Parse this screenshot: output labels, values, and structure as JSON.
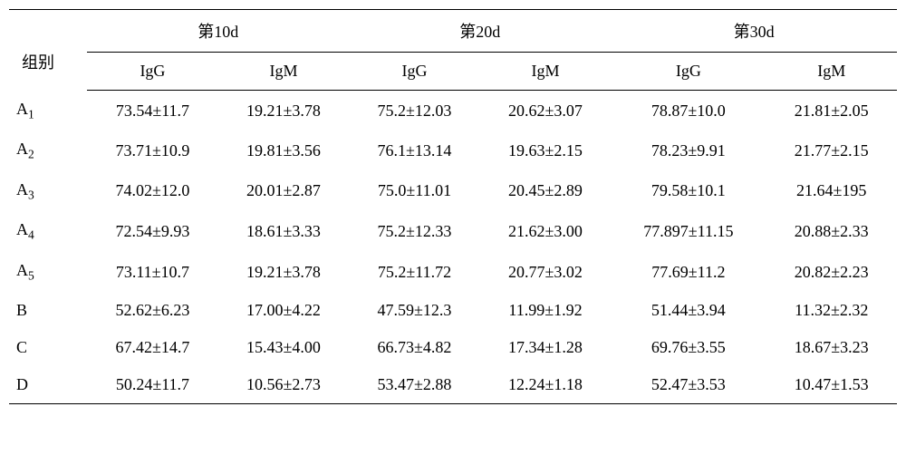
{
  "table": {
    "row_label_header": "组别",
    "period_groups": [
      "第10d",
      "第20d",
      "第30d"
    ],
    "sub_headers": [
      "IgG",
      "IgM"
    ],
    "rows": [
      {
        "label_html": "A<sub>1</sub>",
        "cells": [
          "73.54±11.7",
          "19.21±3.78",
          "75.2±12.03",
          "20.62±3.07",
          "78.87±10.0",
          "21.81±2.05"
        ]
      },
      {
        "label_html": "A<sub>2</sub>",
        "cells": [
          "73.71±10.9",
          "19.81±3.56",
          "76.1±13.14",
          "19.63±2.15",
          "78.23±9.91",
          "21.77±2.15"
        ]
      },
      {
        "label_html": "A<sub>3</sub>",
        "cells": [
          "74.02±12.0",
          "20.01±2.87",
          "75.0±11.01",
          "20.45±2.89",
          "79.58±10.1",
          "21.64±195"
        ]
      },
      {
        "label_html": "A<sub>4</sub>",
        "cells": [
          "72.54±9.93",
          "18.61±3.33",
          "75.2±12.33",
          "21.62±3.00",
          "77.897±11.15",
          "20.88±2.33"
        ]
      },
      {
        "label_html": "A<sub>5</sub>",
        "cells": [
          "73.11±10.7",
          "19.21±3.78",
          "75.2±11.72",
          "20.77±3.02",
          "77.69±11.2",
          "20.82±2.23"
        ]
      },
      {
        "label_html": "B",
        "cells": [
          "52.62±6.23",
          "17.00±4.22",
          "47.59±12.3",
          "11.99±1.92",
          "51.44±3.94",
          "11.32±2.32"
        ]
      },
      {
        "label_html": "C",
        "cells": [
          "67.42±14.7",
          "15.43±4.00",
          "66.73±4.82",
          "17.34±1.28",
          "69.76±3.55",
          "18.67±3.23"
        ]
      },
      {
        "label_html": "D",
        "cells": [
          "50.24±11.7",
          "10.56±2.73",
          "53.47±2.88",
          "12.24±1.18",
          "52.47±3.53",
          "10.47±1.53"
        ]
      }
    ]
  }
}
